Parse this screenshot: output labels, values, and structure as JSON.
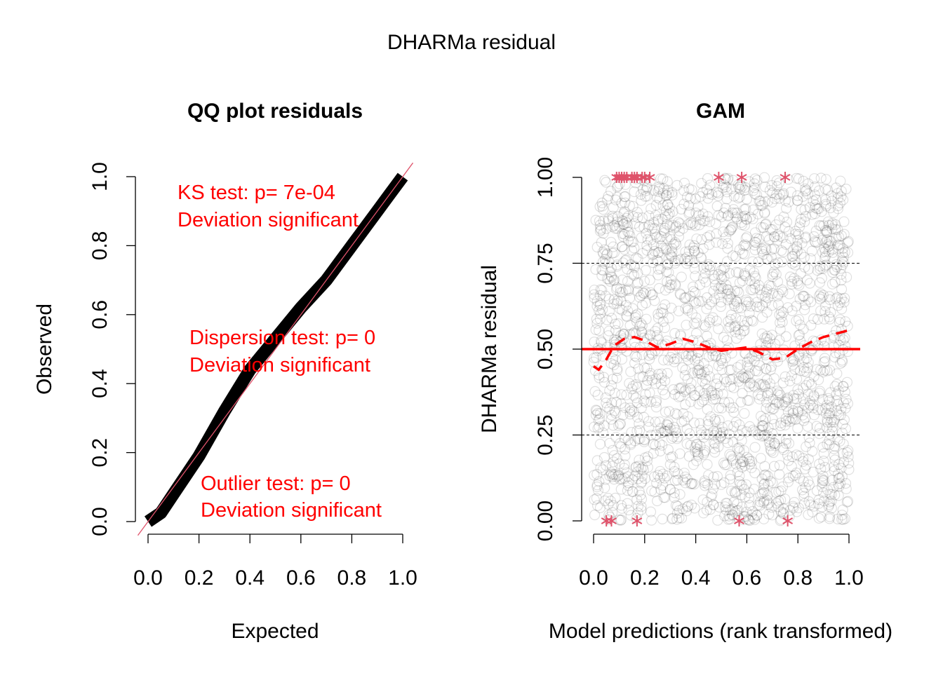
{
  "figure": {
    "main_title": "DHARMa residual"
  },
  "chart_data": [
    {
      "type": "scatter",
      "panel": "qq",
      "title": "QQ plot residuals",
      "xlabel": "Expected",
      "ylabel": "Observed",
      "xlim": [
        -0.04,
        1.04
      ],
      "ylim": [
        -0.04,
        1.04
      ],
      "xticks": [
        0,
        0.2,
        0.4,
        0.6,
        0.8,
        1.0
      ],
      "yticks": [
        0,
        0.2,
        0.4,
        0.6,
        0.8,
        1.0
      ],
      "xtick_labels": [
        "0.0",
        "0.2",
        "0.4",
        "0.6",
        "0.8",
        "1.0"
      ],
      "ytick_labels": [
        "0.0",
        "0.2",
        "0.4",
        "0.6",
        "0.8",
        "1.0"
      ],
      "reference_line": {
        "from": [
          -0.04,
          -0.04
        ],
        "to": [
          1.04,
          1.04
        ],
        "color": "#DF536B"
      },
      "qq_curve": {
        "x": [
          0.0,
          0.05,
          0.1,
          0.2,
          0.3,
          0.4,
          0.5,
          0.6,
          0.7,
          0.8,
          0.9,
          0.95,
          1.0
        ],
        "y": [
          0.0,
          0.025,
          0.08,
          0.19,
          0.32,
          0.44,
          0.53,
          0.62,
          0.7,
          0.8,
          0.9,
          0.95,
          1.0
        ],
        "color": "#000000"
      },
      "annotations": [
        {
          "line1": "KS test: p= 7e-04",
          "line2": "Deviation  significant"
        },
        {
          "line1": "Dispersion test: p= 0",
          "line2": "Deviation  significant"
        },
        {
          "line1": "Outlier test: p= 0",
          "line2": "Deviation  significant"
        }
      ],
      "grid": false
    },
    {
      "type": "scatter",
      "panel": "residual_vs_predicted",
      "title": "GAM",
      "xlabel": "Model predictions (rank transformed)",
      "ylabel": "DHARMa residual",
      "xlim": [
        0,
        1
      ],
      "ylim": [
        0,
        1
      ],
      "xticks": [
        0,
        0.2,
        0.4,
        0.6,
        0.8,
        1.0
      ],
      "yticks": [
        0,
        0.25,
        0.5,
        0.75,
        1.0
      ],
      "xtick_labels": [
        "0.0",
        "0.2",
        "0.4",
        "0.6",
        "0.8",
        "1.0"
      ],
      "ytick_labels": [
        "0.00",
        "0.25",
        "0.50",
        "0.75",
        "1.00"
      ],
      "point_color": "#000000",
      "point_alpha": 0.12,
      "n_points": 2000,
      "quantile_lines": [
        0.25,
        0.5,
        0.75
      ],
      "reference_line": {
        "y": 0.5,
        "color": "#ff0000"
      },
      "smoothed_median": {
        "x": [
          0.0,
          0.02,
          0.05,
          0.08,
          0.12,
          0.16,
          0.2,
          0.25,
          0.3,
          0.35,
          0.4,
          0.45,
          0.5,
          0.55,
          0.6,
          0.65,
          0.7,
          0.75,
          0.8,
          0.85,
          0.9,
          0.95,
          1.0
        ],
        "y": [
          0.45,
          0.44,
          0.47,
          0.51,
          0.53,
          0.535,
          0.525,
          0.505,
          0.515,
          0.53,
          0.52,
          0.505,
          0.495,
          0.5,
          0.505,
          0.49,
          0.47,
          0.475,
          0.5,
          0.52,
          0.535,
          0.545,
          0.555
        ],
        "color": "#ff0000"
      },
      "outliers": {
        "color": "#DF536B",
        "top": [
          0.09,
          0.1,
          0.11,
          0.12,
          0.13,
          0.15,
          0.16,
          0.17,
          0.19,
          0.2,
          0.22,
          0.49,
          0.58,
          0.75
        ],
        "bottom": [
          0.05,
          0.07,
          0.17,
          0.57,
          0.76
        ]
      },
      "grid": false
    }
  ]
}
